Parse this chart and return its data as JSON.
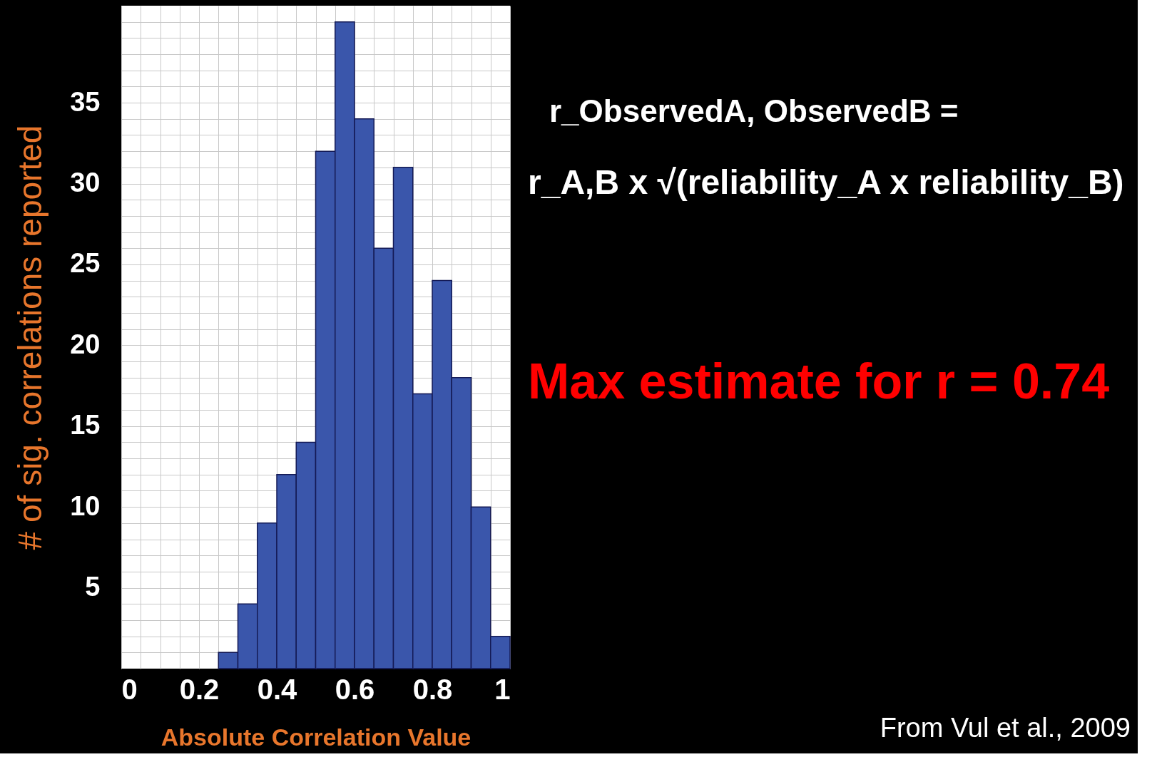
{
  "chart_data": {
    "type": "histogram",
    "xlabel": "Absolute Correlation Value",
    "ylabel": "# of sig. correlations reported",
    "bins": [
      0,
      0.05,
      0.1,
      0.15,
      0.2,
      0.25,
      0.3,
      0.35,
      0.4,
      0.45,
      0.5,
      0.55,
      0.6,
      0.65,
      0.7,
      0.75,
      0.8,
      0.85,
      0.9,
      0.95,
      1
    ],
    "values": [
      0,
      0,
      0,
      0,
      0,
      1,
      4,
      9,
      12,
      14,
      32,
      40,
      34,
      26,
      31,
      17,
      24,
      18,
      10,
      2
    ],
    "color": "#3a56ab",
    "xlim": [
      0,
      1
    ],
    "ylim": [
      0,
      41
    ],
    "xticks": [
      0,
      {
        "value": 0.05,
        "label": null
      },
      {
        "value": 0.1,
        "label": null
      },
      {
        "value": 0.15,
        "label": null
      },
      0.2,
      {
        "value": 0.25,
        "label": null
      },
      {
        "value": 0.3,
        "label": null
      },
      {
        "value": 0.35,
        "label": null
      },
      0.4,
      {
        "value": 0.45,
        "label": null
      },
      {
        "value": 0.5,
        "label": null
      },
      {
        "value": 0.55,
        "label": null
      },
      0.6,
      {
        "value": 0.65,
        "label": null
      },
      {
        "value": 0.7,
        "label": null
      },
      {
        "value": 0.75,
        "label": null
      },
      0.8,
      {
        "value": 0.85,
        "label": null
      },
      {
        "value": 0.9,
        "label": null
      },
      {
        "value": 0.95,
        "label": null
      },
      1
    ],
    "yticks": [
      {
        "value": 1,
        "label": null
      },
      {
        "value": 2,
        "label": null
      },
      {
        "value": 3,
        "label": null
      },
      {
        "value": 4,
        "label": null
      },
      5,
      {
        "value": 6,
        "label": null
      },
      {
        "value": 7,
        "label": null
      },
      {
        "value": 8,
        "label": null
      },
      {
        "value": 9,
        "label": null
      },
      10,
      {
        "value": 11,
        "label": null
      },
      {
        "value": 12,
        "label": null
      },
      {
        "value": 13,
        "label": null
      },
      {
        "value": 14,
        "label": null
      },
      15,
      {
        "value": 16,
        "label": null
      },
      {
        "value": 17,
        "label": null
      },
      {
        "value": 18,
        "label": null
      },
      {
        "value": 19,
        "label": null
      },
      20,
      {
        "value": 21,
        "label": null
      },
      {
        "value": 22,
        "label": null
      },
      {
        "value": 23,
        "label": null
      },
      {
        "value": 24,
        "label": null
      },
      25,
      {
        "value": 26,
        "label": null
      },
      {
        "value": 27,
        "label": null
      },
      {
        "value": 28,
        "label": null
      },
      {
        "value": 29,
        "label": null
      },
      30,
      {
        "value": 31,
        "label": null
      },
      {
        "value": 32,
        "label": null
      },
      {
        "value": 33,
        "label": null
      },
      {
        "value": 34,
        "label": null
      },
      35,
      {
        "value": 36,
        "label": null
      },
      {
        "value": 37,
        "label": null
      },
      {
        "value": 38,
        "label": null
      },
      {
        "value": 39,
        "label": null
      },
      {
        "value": 40,
        "label": null
      }
    ],
    "grid": true,
    "annotations": [
      "r_ObservedA, ObservedB =",
      "r_A,B x √(reliability_A x reliability_B)",
      "Max estimate for r = 0.74",
      "From Vul et al., 2009"
    ]
  }
}
